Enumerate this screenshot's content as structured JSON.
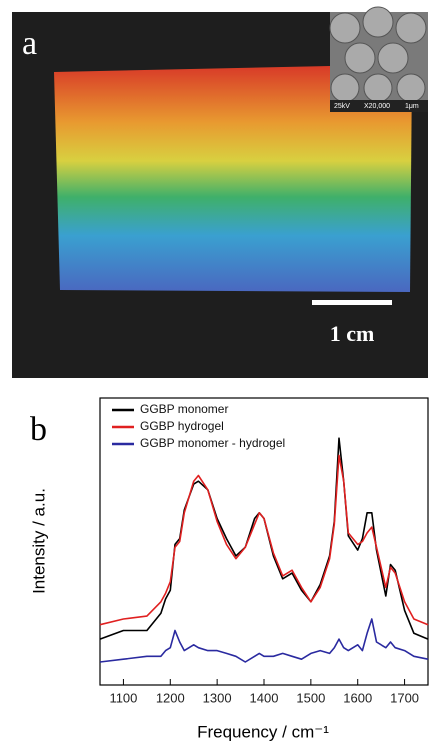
{
  "panel_a": {
    "label": "a",
    "scale_bar": "1 cm",
    "inset": {
      "voltage": "25kV",
      "magnification": "X20,000",
      "scale": "1μm"
    }
  },
  "chart_data": {
    "type": "line",
    "panel_label": "b",
    "x_label": "Frequency / cm⁻¹",
    "y_label": "Intensity / a.u.",
    "x": [
      1050,
      1100,
      1150,
      1180,
      1190,
      1200,
      1210,
      1220,
      1230,
      1250,
      1260,
      1280,
      1300,
      1320,
      1340,
      1360,
      1380,
      1390,
      1400,
      1420,
      1440,
      1460,
      1480,
      1500,
      1520,
      1540,
      1550,
      1560,
      1570,
      1580,
      1600,
      1610,
      1620,
      1630,
      1640,
      1660,
      1670,
      1680,
      1700,
      1720,
      1750
    ],
    "series": [
      {
        "name": "GGBP monomer",
        "color": "#000000",
        "values": [
          1.6,
          1.9,
          1.9,
          2.5,
          3.0,
          3.3,
          4.9,
          5.1,
          6.1,
          7.0,
          7.1,
          6.8,
          5.8,
          5.1,
          4.5,
          4.8,
          5.8,
          6.0,
          5.8,
          4.5,
          3.7,
          3.9,
          3.3,
          2.9,
          3.5,
          4.5,
          5.7,
          8.6,
          7.1,
          5.2,
          4.7,
          5.1,
          6.0,
          6.0,
          4.7,
          3.1,
          4.2,
          4.0,
          2.6,
          1.8,
          1.6
        ]
      },
      {
        "name": "GGBP hydrogel",
        "color": "#e02020",
        "values": [
          2.1,
          2.3,
          2.4,
          2.9,
          3.2,
          3.6,
          4.8,
          5.0,
          6.0,
          7.1,
          7.3,
          6.8,
          5.7,
          4.9,
          4.4,
          4.8,
          5.6,
          6.0,
          5.8,
          4.6,
          3.8,
          4.0,
          3.4,
          2.9,
          3.4,
          4.4,
          5.6,
          8.0,
          7.1,
          5.3,
          4.9,
          5.0,
          5.3,
          5.5,
          4.8,
          3.4,
          4.1,
          3.9,
          2.9,
          2.3,
          2.1
        ]
      },
      {
        "name": "GGBP monomer - hydrogel",
        "color": "#2a2aa0",
        "values": [
          0.8,
          0.9,
          1.0,
          1.0,
          1.2,
          1.3,
          1.9,
          1.5,
          1.2,
          1.4,
          1.3,
          1.2,
          1.2,
          1.1,
          1.0,
          0.8,
          1.0,
          1.1,
          1.0,
          1.0,
          1.1,
          1.0,
          0.9,
          1.1,
          1.2,
          1.1,
          1.3,
          1.6,
          1.3,
          1.2,
          1.4,
          1.2,
          1.8,
          2.3,
          1.5,
          1.3,
          1.5,
          1.3,
          1.2,
          1.0,
          0.9
        ]
      }
    ],
    "xlim": [
      1050,
      1750
    ],
    "xticks": [
      1100,
      1200,
      1300,
      1400,
      1500,
      1600,
      1700
    ],
    "ylim": [
      0,
      10
    ],
    "legend": "upper left"
  }
}
